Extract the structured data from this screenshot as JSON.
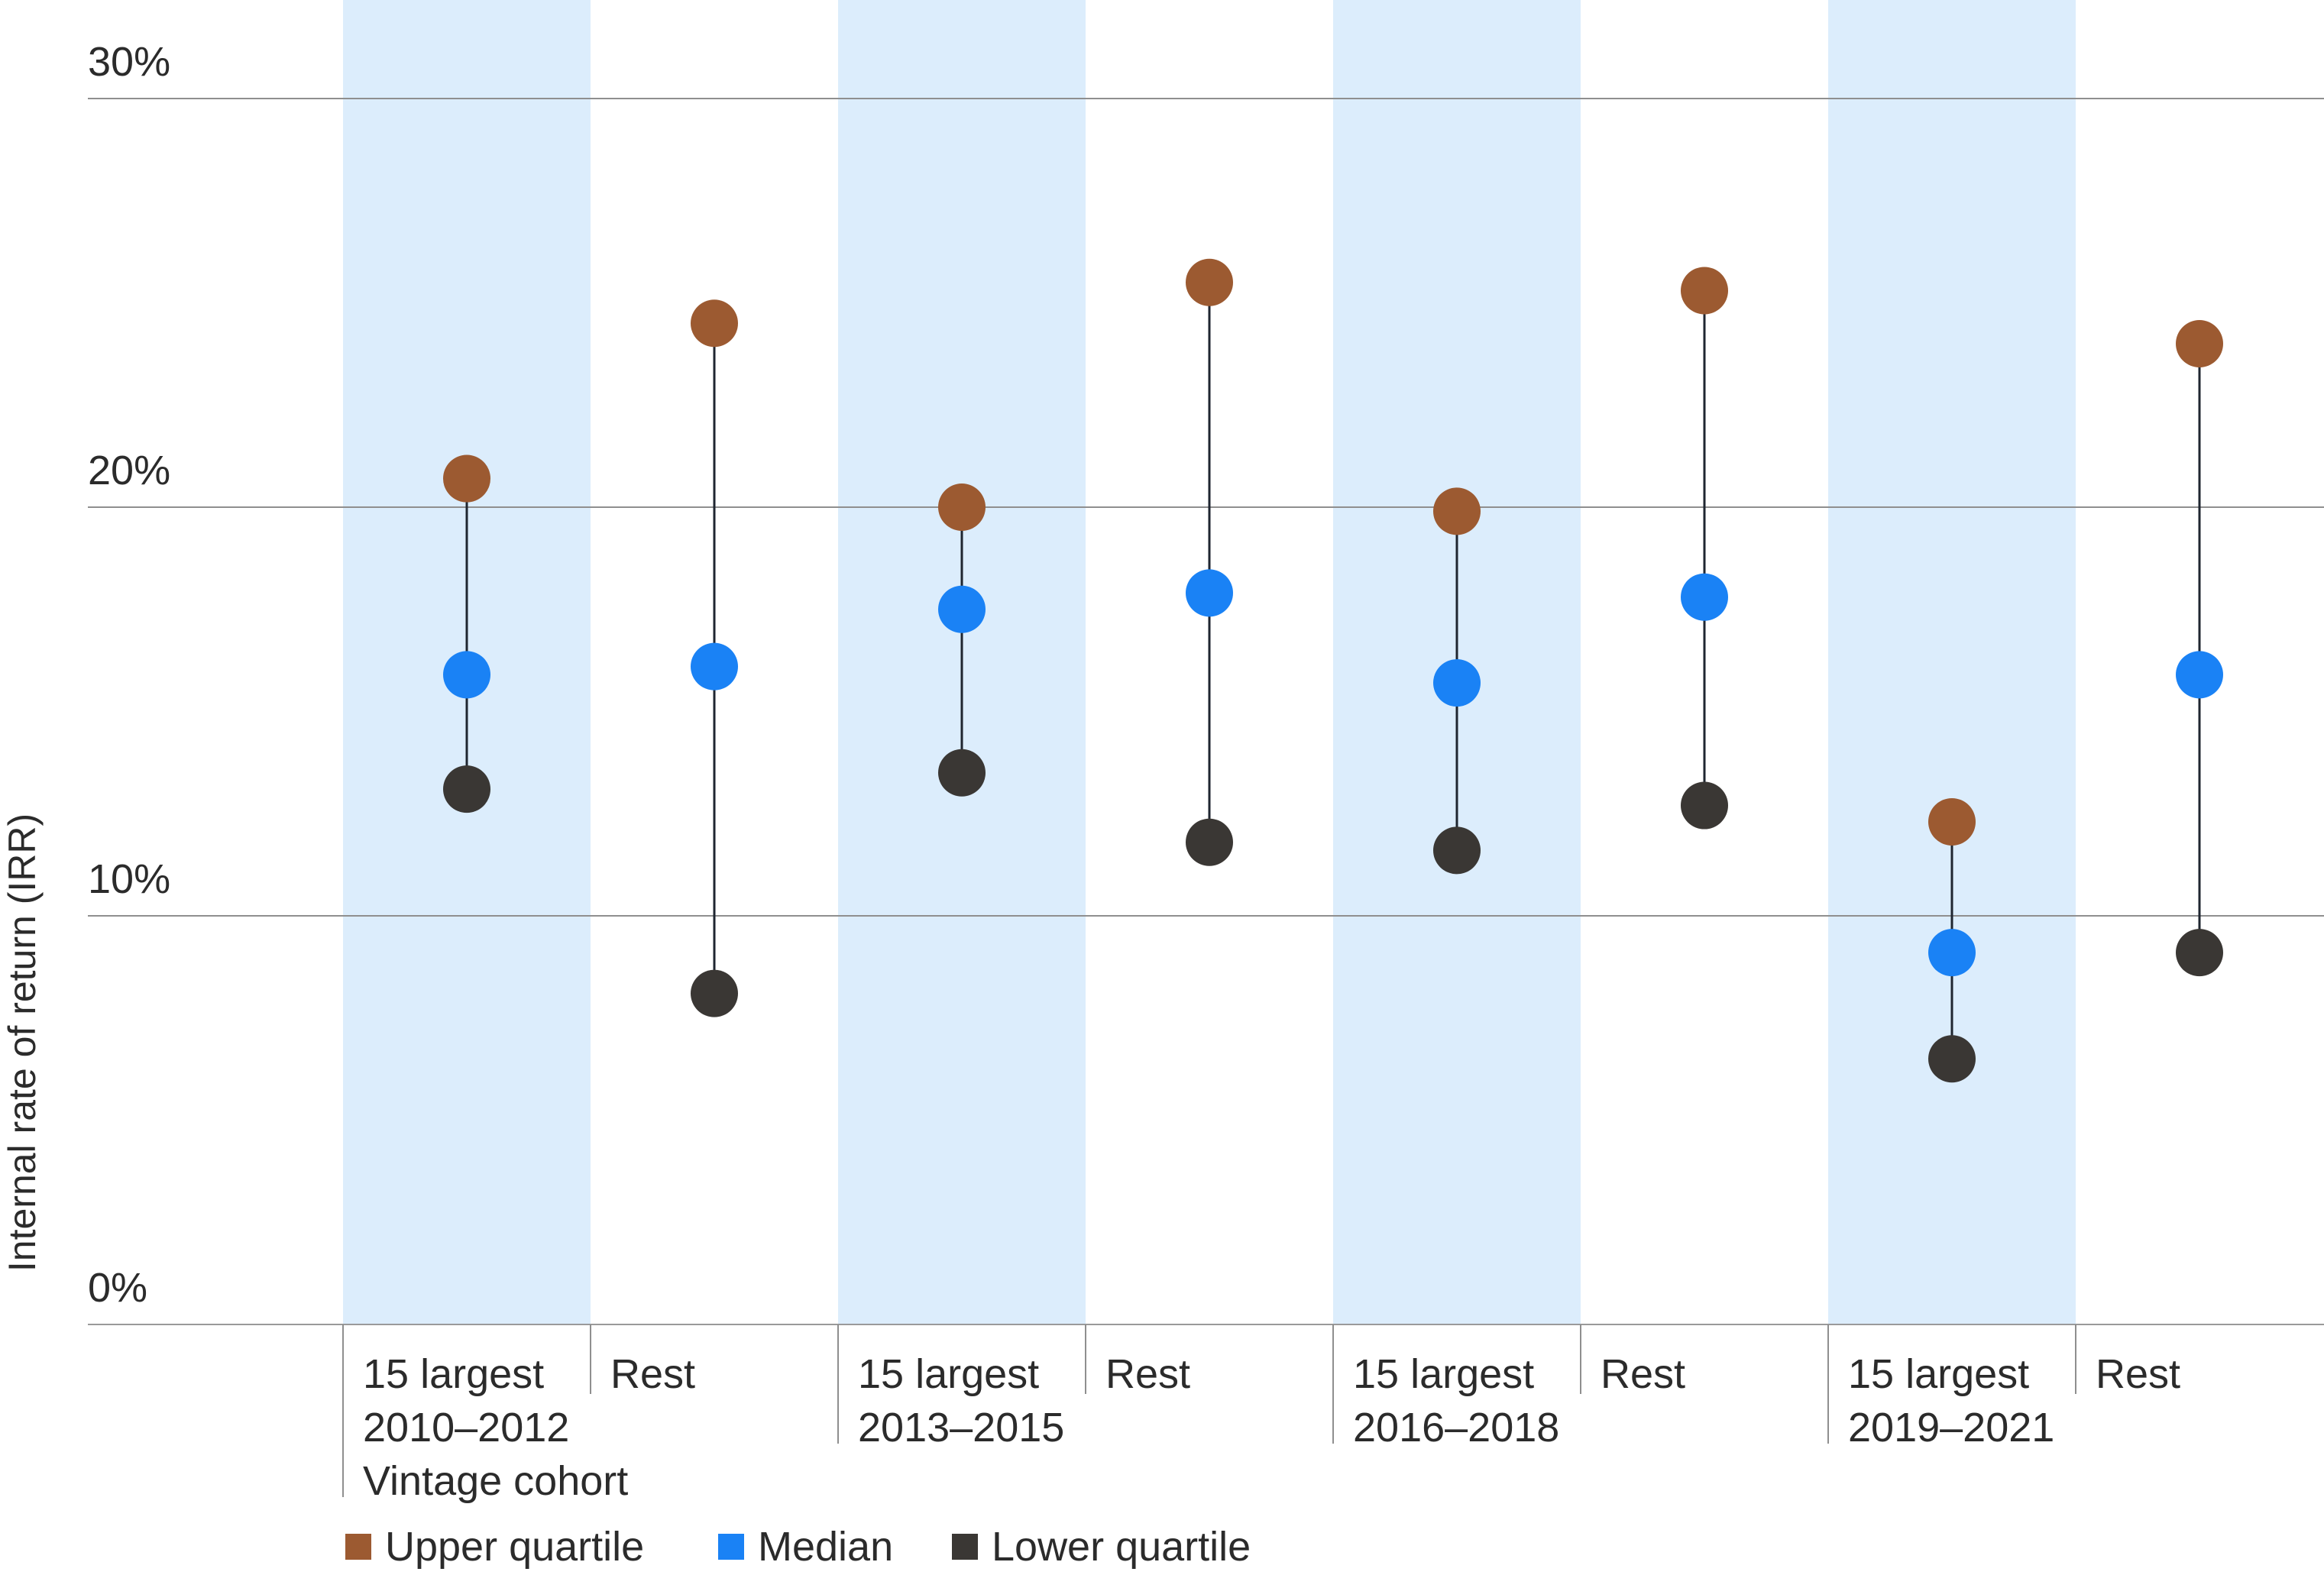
{
  "chart_data": {
    "type": "dot-range",
    "ylabel": "Internal rate of return (IRR)",
    "ylim": [
      0,
      30
    ],
    "yticks": [
      0,
      10,
      20,
      30
    ],
    "ytick_labels": [
      "0%",
      "10%",
      "20%",
      "30%"
    ],
    "grid": true,
    "xlabel": "Vintage cohort",
    "groups": [
      {
        "label": "2010–2012",
        "categories": [
          "15 largest",
          "Rest"
        ]
      },
      {
        "label": "2013–2015",
        "categories": [
          "15 largest",
          "Rest"
        ]
      },
      {
        "label": "2016–2018",
        "categories": [
          "15 largest",
          "Rest"
        ]
      },
      {
        "label": "2019–2021",
        "categories": [
          "15 largest",
          "Rest"
        ]
      }
    ],
    "series": [
      {
        "name": "Upper quartile",
        "color": "#9c5a31",
        "values": [
          20.7,
          24.5,
          20.0,
          25.5,
          19.9,
          25.3,
          12.3,
          24.0
        ]
      },
      {
        "name": "Median",
        "color": "#1a82f5",
        "values": [
          15.9,
          16.1,
          17.5,
          17.9,
          15.7,
          17.8,
          9.1,
          15.9
        ]
      },
      {
        "name": "Lower quartile",
        "color": "#3a3734",
        "values": [
          13.1,
          8.1,
          13.5,
          11.8,
          11.6,
          12.7,
          6.5,
          9.1
        ]
      }
    ],
    "legend_position": "bottom-left",
    "highlight_color": "#dcedfc"
  }
}
